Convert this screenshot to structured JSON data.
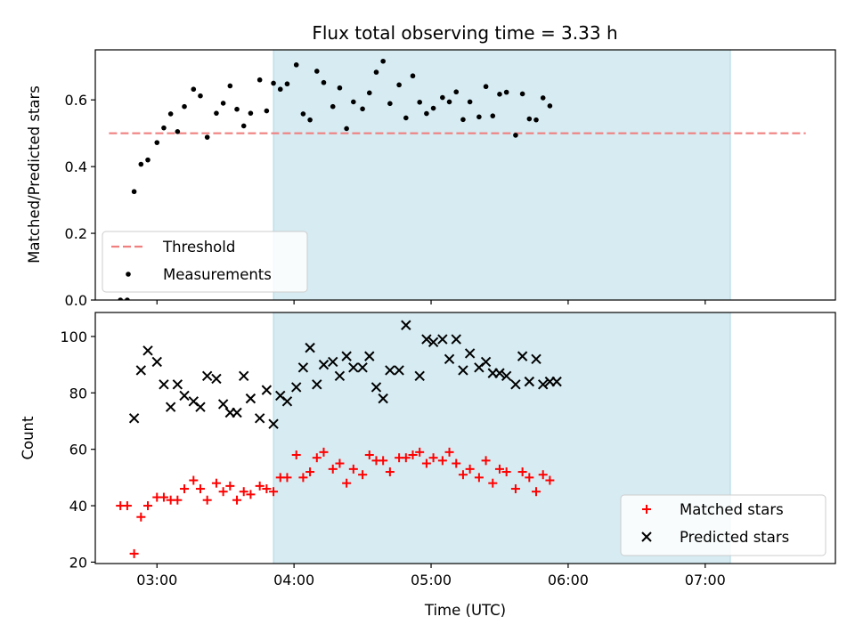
{
  "title": "Flux total observing time = 3.33 h",
  "chart_data": [
    {
      "type": "scatter",
      "id": "ratio",
      "ylabel": "Matched/Predicted stars",
      "xlabel": "",
      "xlim": [
        "02:33",
        "07:57"
      ],
      "ylim": [
        0,
        0.75
      ],
      "yticks": [
        0.0,
        0.2,
        0.4,
        0.6
      ],
      "ytick_labels": [
        "0.0",
        "0.2",
        "0.4",
        "0.6"
      ],
      "xticks": [
        "03:00",
        "04:00",
        "05:00",
        "06:00",
        "07:00"
      ],
      "x_ticklabels_shown": false,
      "shaded_span": {
        "start": "03:51",
        "end": "07:11",
        "color": "#add8e6"
      },
      "grid": false,
      "legend": {
        "position": "lower-left",
        "entries": [
          "Threshold",
          "Measurements"
        ]
      },
      "threshold": {
        "name": "Threshold",
        "value": 0.5,
        "x": [
          "02:39",
          "07:44"
        ],
        "color": "#f08080",
        "style": "dashed"
      },
      "series": [
        {
          "name": "Measurements",
          "marker": "dot",
          "color": "#000000",
          "points": [
            [
              "02:44",
              0.0
            ],
            [
              "02:47",
              0.0
            ],
            [
              "02:50",
              0.325
            ],
            [
              "02:53",
              0.407
            ],
            [
              "02:56",
              0.42
            ],
            [
              "03:00",
              0.472
            ],
            [
              "03:03",
              0.516
            ],
            [
              "03:06",
              0.558
            ],
            [
              "03:09",
              0.505
            ],
            [
              "03:12",
              0.58
            ],
            [
              "03:16",
              0.632
            ],
            [
              "03:19",
              0.612
            ],
            [
              "03:22",
              0.488
            ],
            [
              "03:26",
              0.56
            ],
            [
              "03:29",
              0.59
            ],
            [
              "03:32",
              0.642
            ],
            [
              "03:35",
              0.572
            ],
            [
              "03:38",
              0.522
            ],
            [
              "03:41",
              0.56
            ],
            [
              "03:45",
              0.66
            ],
            [
              "03:48",
              0.567
            ],
            [
              "03:51",
              0.65
            ],
            [
              "03:54",
              0.632
            ],
            [
              "03:57",
              0.648
            ],
            [
              "04:01",
              0.705
            ],
            [
              "04:04",
              0.558
            ],
            [
              "04:07",
              0.54
            ],
            [
              "04:10",
              0.686
            ],
            [
              "04:13",
              0.652
            ],
            [
              "04:17",
              0.58
            ],
            [
              "04:20",
              0.636
            ],
            [
              "04:23",
              0.514
            ],
            [
              "04:26",
              0.594
            ],
            [
              "04:30",
              0.573
            ],
            [
              "04:33",
              0.621
            ],
            [
              "04:36",
              0.683
            ],
            [
              "04:39",
              0.716
            ],
            [
              "04:42",
              0.589
            ],
            [
              "04:46",
              0.645
            ],
            [
              "04:49",
              0.546
            ],
            [
              "04:52",
              0.672
            ],
            [
              "04:55",
              0.593
            ],
            [
              "04:58",
              0.559
            ],
            [
              "05:01",
              0.575
            ],
            [
              "05:05",
              0.607
            ],
            [
              "05:08",
              0.594
            ],
            [
              "05:11",
              0.624
            ],
            [
              "05:14",
              0.541
            ],
            [
              "05:17",
              0.594
            ],
            [
              "05:21",
              0.549
            ],
            [
              "05:24",
              0.64
            ],
            [
              "05:27",
              0.552
            ],
            [
              "05:30",
              0.617
            ],
            [
              "05:33",
              0.623
            ],
            [
              "05:37",
              0.494
            ],
            [
              "05:40",
              0.618
            ],
            [
              "05:43",
              0.543
            ],
            [
              "05:46",
              0.54
            ],
            [
              "05:49",
              0.606
            ],
            [
              "05:52",
              0.582
            ]
          ]
        }
      ]
    },
    {
      "type": "scatter",
      "id": "counts",
      "ylabel": "Count",
      "xlabel": "Time (UTC)",
      "xlim": [
        "02:33",
        "07:57"
      ],
      "ylim": [
        19.5,
        108.5
      ],
      "yticks": [
        20,
        40,
        60,
        80,
        100
      ],
      "ytick_labels": [
        "20",
        "40",
        "60",
        "80",
        "100"
      ],
      "xticks": [
        "03:00",
        "04:00",
        "05:00",
        "06:00",
        "07:00"
      ],
      "xtick_labels": [
        "03:00",
        "04:00",
        "05:00",
        "06:00",
        "07:00"
      ],
      "shaded_span": {
        "start": "03:51",
        "end": "07:11",
        "color": "#add8e6"
      },
      "grid": false,
      "legend": {
        "position": "lower-right",
        "entries": [
          "Matched stars",
          "Predicted stars"
        ]
      },
      "series": [
        {
          "name": "Matched stars",
          "marker": "plus",
          "color": "#ff0000",
          "points": [
            [
              "02:44",
              40
            ],
            [
              "02:47",
              40
            ],
            [
              "02:50",
              23
            ],
            [
              "02:53",
              36
            ],
            [
              "02:56",
              40
            ],
            [
              "03:00",
              43
            ],
            [
              "03:03",
              43
            ],
            [
              "03:06",
              42
            ],
            [
              "03:09",
              42
            ],
            [
              "03:12",
              46
            ],
            [
              "03:16",
              49
            ],
            [
              "03:19",
              46
            ],
            [
              "03:22",
              42
            ],
            [
              "03:26",
              48
            ],
            [
              "03:29",
              45
            ],
            [
              "03:32",
              47
            ],
            [
              "03:35",
              42
            ],
            [
              "03:38",
              45
            ],
            [
              "03:41",
              44
            ],
            [
              "03:45",
              47
            ],
            [
              "03:48",
              46
            ],
            [
              "03:51",
              45
            ],
            [
              "03:54",
              50
            ],
            [
              "03:57",
              50
            ],
            [
              "04:01",
              58
            ],
            [
              "04:04",
              50
            ],
            [
              "04:07",
              52
            ],
            [
              "04:10",
              57
            ],
            [
              "04:13",
              59
            ],
            [
              "04:17",
              53
            ],
            [
              "04:20",
              55
            ],
            [
              "04:23",
              48
            ],
            [
              "04:26",
              53
            ],
            [
              "04:30",
              51
            ],
            [
              "04:33",
              58
            ],
            [
              "04:36",
              56
            ],
            [
              "04:39",
              56
            ],
            [
              "04:42",
              52
            ],
            [
              "04:46",
              57
            ],
            [
              "04:49",
              57
            ],
            [
              "04:52",
              58
            ],
            [
              "04:55",
              59
            ],
            [
              "04:58",
              55
            ],
            [
              "05:01",
              57
            ],
            [
              "05:05",
              56
            ],
            [
              "05:08",
              59
            ],
            [
              "05:11",
              55
            ],
            [
              "05:14",
              51
            ],
            [
              "05:17",
              53
            ],
            [
              "05:21",
              50
            ],
            [
              "05:24",
              56
            ],
            [
              "05:27",
              48
            ],
            [
              "05:30",
              53
            ],
            [
              "05:33",
              52
            ],
            [
              "05:37",
              46
            ],
            [
              "05:40",
              52
            ],
            [
              "05:43",
              50
            ],
            [
              "05:46",
              45
            ],
            [
              "05:49",
              51
            ],
            [
              "05:52",
              49
            ]
          ]
        },
        {
          "name": "Predicted stars",
          "marker": "x",
          "color": "#000000",
          "points": [
            [
              "02:50",
              71
            ],
            [
              "02:53",
              88
            ],
            [
              "02:56",
              95
            ],
            [
              "03:00",
              91
            ],
            [
              "03:03",
              83
            ],
            [
              "03:06",
              75
            ],
            [
              "03:09",
              83
            ],
            [
              "03:12",
              79
            ],
            [
              "03:16",
              77
            ],
            [
              "03:19",
              75
            ],
            [
              "03:22",
              86
            ],
            [
              "03:26",
              85
            ],
            [
              "03:29",
              76
            ],
            [
              "03:32",
              73
            ],
            [
              "03:35",
              73
            ],
            [
              "03:38",
              86
            ],
            [
              "03:41",
              78
            ],
            [
              "03:45",
              71
            ],
            [
              "03:48",
              81
            ],
            [
              "03:51",
              69
            ],
            [
              "03:54",
              79
            ],
            [
              "03:57",
              77
            ],
            [
              "04:01",
              82
            ],
            [
              "04:04",
              89
            ],
            [
              "04:07",
              96
            ],
            [
              "04:10",
              83
            ],
            [
              "04:13",
              90
            ],
            [
              "04:17",
              91
            ],
            [
              "04:20",
              86
            ],
            [
              "04:23",
              93
            ],
            [
              "04:26",
              89
            ],
            [
              "04:30",
              89
            ],
            [
              "04:33",
              93
            ],
            [
              "04:36",
              82
            ],
            [
              "04:39",
              78
            ],
            [
              "04:42",
              88
            ],
            [
              "04:46",
              88
            ],
            [
              "04:49",
              104
            ],
            [
              "04:55",
              86
            ],
            [
              "04:58",
              99
            ],
            [
              "05:01",
              98
            ],
            [
              "05:05",
              99
            ],
            [
              "05:08",
              92
            ],
            [
              "05:11",
              99
            ],
            [
              "05:14",
              88
            ],
            [
              "05:17",
              94
            ],
            [
              "05:21",
              89
            ],
            [
              "05:24",
              91
            ],
            [
              "05:27",
              87
            ],
            [
              "05:30",
              87
            ],
            [
              "05:33",
              86
            ],
            [
              "05:37",
              83
            ],
            [
              "05:40",
              93
            ],
            [
              "05:43",
              84
            ],
            [
              "05:46",
              92
            ],
            [
              "05:49",
              83
            ],
            [
              "05:52",
              84
            ],
            [
              "05:55",
              84
            ]
          ]
        }
      ]
    }
  ]
}
